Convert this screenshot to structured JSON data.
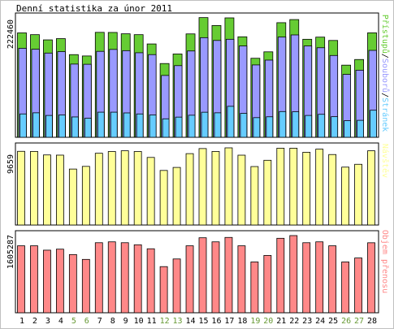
{
  "chart_title": "Denní statistika za únor 2011",
  "colors": {
    "hits": "#66ccff",
    "files": "#9999ff",
    "pages": "#66cc33",
    "visits": "#ffff99",
    "kbytes": "#ff8888",
    "weekday_label": "#000000",
    "weekend_label": "#669933",
    "frame": "#c0c0c0",
    "outline": "#000000"
  },
  "legend": {
    "hits": "Stránek",
    "files": "Souborů",
    "pages": "Přístupů",
    "visits": "Návštěv",
    "kbytes": "Objem přenosu",
    "separator": "/"
  },
  "chart_data": [
    {
      "type": "bar",
      "name": "traffic",
      "max_label": "222460",
      "ylim": [
        0,
        222460
      ],
      "categories": [
        "1",
        "2",
        "3",
        "4",
        "5",
        "6",
        "7",
        "8",
        "9",
        "10",
        "11",
        "12",
        "13",
        "14",
        "15",
        "16",
        "17",
        "18",
        "19",
        "20",
        "21",
        "22",
        "23",
        "24",
        "25",
        "26",
        "27",
        "28"
      ],
      "weekend": [
        false,
        false,
        false,
        false,
        true,
        true,
        false,
        false,
        false,
        false,
        false,
        true,
        true,
        false,
        false,
        false,
        false,
        false,
        true,
        true,
        false,
        false,
        false,
        false,
        false,
        true,
        true,
        false
      ],
      "series": [
        {
          "name": "Přístupů",
          "values": [
            194500,
            191200,
            181500,
            183800,
            154000,
            151500,
            195500,
            195300,
            192800,
            191200,
            173900,
            137400,
            155200,
            192600,
            223000,
            208200,
            222460,
            187200,
            147200,
            159200,
            213500,
            219300,
            182600,
            186600,
            180400,
            134400,
            144900,
            194600
          ]
        },
        {
          "name": "Souborů",
          "values": [
            165800,
            164000,
            156900,
            159600,
            136400,
            136000,
            160100,
            163700,
            161400,
            157500,
            154000,
            115200,
            133500,
            160800,
            185600,
            180400,
            182600,
            170100,
            134800,
            143800,
            186700,
            190700,
            170100,
            166800,
            152400,
            117200,
            125000,
            161900
          ]
        },
        {
          "name": "Stránek",
          "values": [
            43500,
            45600,
            40700,
            41600,
            37900,
            35400,
            46800,
            46800,
            45400,
            43500,
            41700,
            34400,
            37600,
            41100,
            46700,
            45600,
            57700,
            44600,
            36600,
            38200,
            48000,
            47600,
            40700,
            42800,
            38400,
            30900,
            31600,
            50400
          ]
        }
      ]
    },
    {
      "type": "bar",
      "name": "visits",
      "max_label": "9659",
      "ylim": [
        0,
        9659
      ],
      "categories": [
        "1",
        "2",
        "3",
        "4",
        "5",
        "6",
        "7",
        "8",
        "9",
        "10",
        "11",
        "12",
        "13",
        "14",
        "15",
        "16",
        "17",
        "18",
        "19",
        "20",
        "21",
        "22",
        "23",
        "24",
        "25",
        "26",
        "27",
        "28"
      ],
      "series": [
        {
          "name": "Návštěv",
          "values": [
            9226,
            9213,
            8772,
            8747,
            7004,
            7339,
            8983,
            9202,
            9292,
            9202,
            8460,
            6830,
            7209,
            8935,
            9570,
            9209,
            9659,
            8743,
            7317,
            8103,
            9615,
            9615,
            9107,
            9497,
            8823,
            7247,
            7600,
            9291
          ]
        }
      ]
    },
    {
      "type": "bar",
      "name": "kbytes",
      "max_label": "1605287",
      "ylim": [
        0,
        1605287
      ],
      "categories": [
        "1",
        "2",
        "3",
        "4",
        "5",
        "6",
        "7",
        "8",
        "9",
        "10",
        "11",
        "12",
        "13",
        "14",
        "15",
        "16",
        "17",
        "18",
        "19",
        "20",
        "21",
        "22",
        "23",
        "24",
        "25",
        "26",
        "27",
        "28"
      ],
      "series": [
        {
          "name": "Objem přenosu",
          "values": [
            1393000,
            1393000,
            1302000,
            1323000,
            1211000,
            1110000,
            1457000,
            1475000,
            1457000,
            1414000,
            1331000,
            959700,
            1119000,
            1393000,
            1560000,
            1475000,
            1567000,
            1393000,
            1057000,
            1192000,
            1549000,
            1605287,
            1457000,
            1475000,
            1393000,
            1057000,
            1139000,
            1456000
          ]
        }
      ]
    }
  ]
}
